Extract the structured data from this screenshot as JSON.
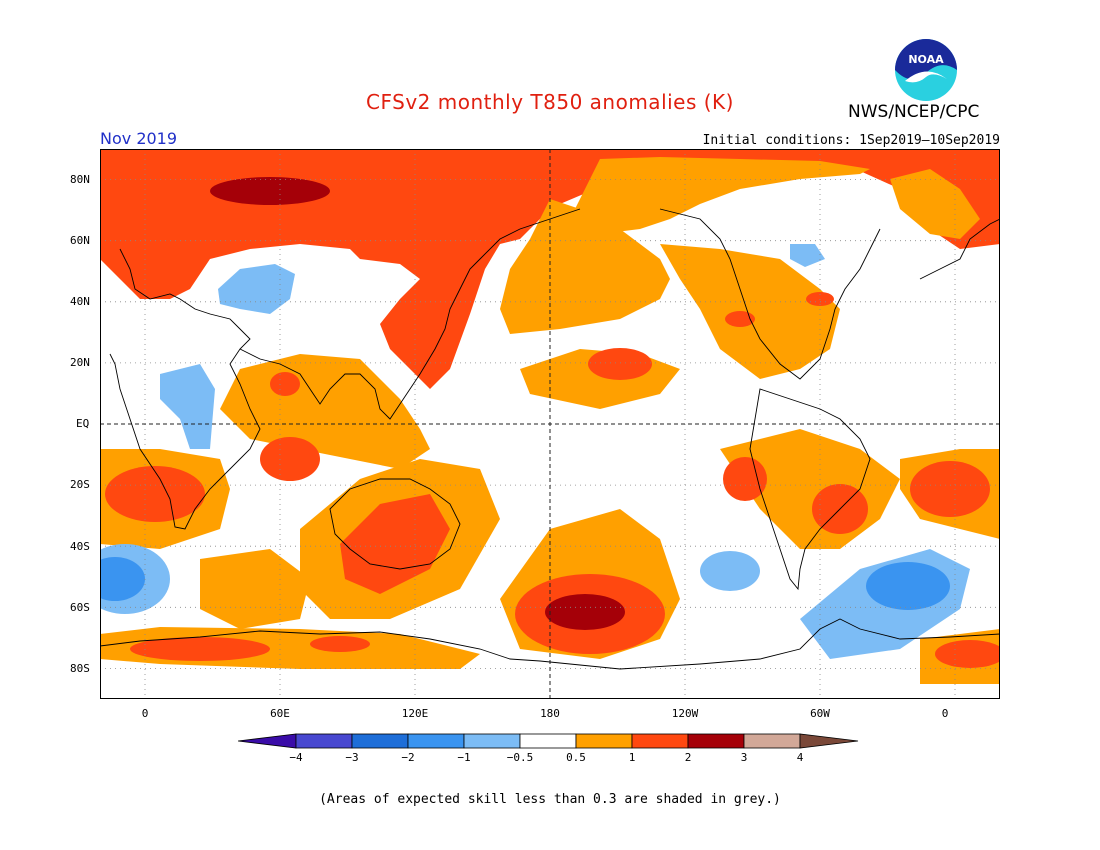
{
  "title": "CFSv2 monthly T850 anomalies (K)",
  "agency": "NWS/NCEP/CPC",
  "logo_text": "NOAA",
  "valid_month": "Nov 2019",
  "initial_conditions": "Initial conditions: 1Sep2019–10Sep2019",
  "latitude_labels": [
    "80N",
    "60N",
    "40N",
    "20N",
    "EQ",
    "20S",
    "40S",
    "60S",
    "80S"
  ],
  "longitude_labels": [
    "0",
    "60E",
    "120E",
    "180",
    "120W",
    "60W",
    "0"
  ],
  "colorbar": {
    "labels": [
      "−4",
      "−3",
      "−2",
      "−1",
      "−0.5",
      "0.5",
      "1",
      "2",
      "3",
      "4"
    ],
    "colors": [
      "#3a0ca8",
      "#4848d0",
      "#1e6ed8",
      "#3a94f0",
      "#7cbcf5",
      "#ffffff",
      "#ffa000",
      "#ff4810",
      "#a50008",
      "#d2a898",
      "#7a4838"
    ]
  },
  "footnote": "(Areas of expected skill less than 0.3 are shaded in grey.)",
  "map": {
    "projection": "cylindrical equidistant",
    "lon_range": [
      -20,
      380
    ],
    "lat_range": [
      -90,
      90
    ],
    "background_color": "#ffffff",
    "anomaly_regions": [
      {
        "region": "Arctic / northern Eurasia",
        "level": "1 to 2",
        "color": "#ff4810"
      },
      {
        "region": "central Siberia / Kara Sea",
        "level": "2 to 3",
        "color": "#a50008"
      },
      {
        "region": "East Asia (China, Korea, Japan)",
        "level": "1 to 2",
        "color": "#ff4810"
      },
      {
        "region": "central Asia",
        "level": "-1 to -0.5",
        "color": "#7cbcf5"
      },
      {
        "region": "Arabian Peninsula / East Africa",
        "level": "-1 to -0.5",
        "color": "#7cbcf5"
      },
      {
        "region": "central North Pacific",
        "level": "0.5 to 1",
        "color": "#ffa000"
      },
      {
        "region": "subtropical North Pacific",
        "level": "1 to 2",
        "color": "#ff4810"
      },
      {
        "region": "North America",
        "level": "0.5 to 1",
        "color": "#ffa000"
      },
      {
        "region": "western Canada / Hudson Bay",
        "level": "-1 to -0.5",
        "color": "#7cbcf5"
      },
      {
        "region": "southern Africa",
        "level": "1 to 2",
        "color": "#ff4810"
      },
      {
        "region": "Australia",
        "level": "1 to 2",
        "color": "#ff4810"
      },
      {
        "region": "South Pacific near 60S, 170W",
        "level": "2 to 3",
        "color": "#a50008"
      },
      {
        "region": "South Atlantic",
        "level": "-1 to -0.5",
        "color": "#7cbcf5"
      },
      {
        "region": "South Atlantic core",
        "level": "-2 to -1",
        "color": "#3a94f0"
      },
      {
        "region": "Antarctica coast",
        "level": "1 to 2",
        "color": "#ff4810"
      }
    ]
  }
}
